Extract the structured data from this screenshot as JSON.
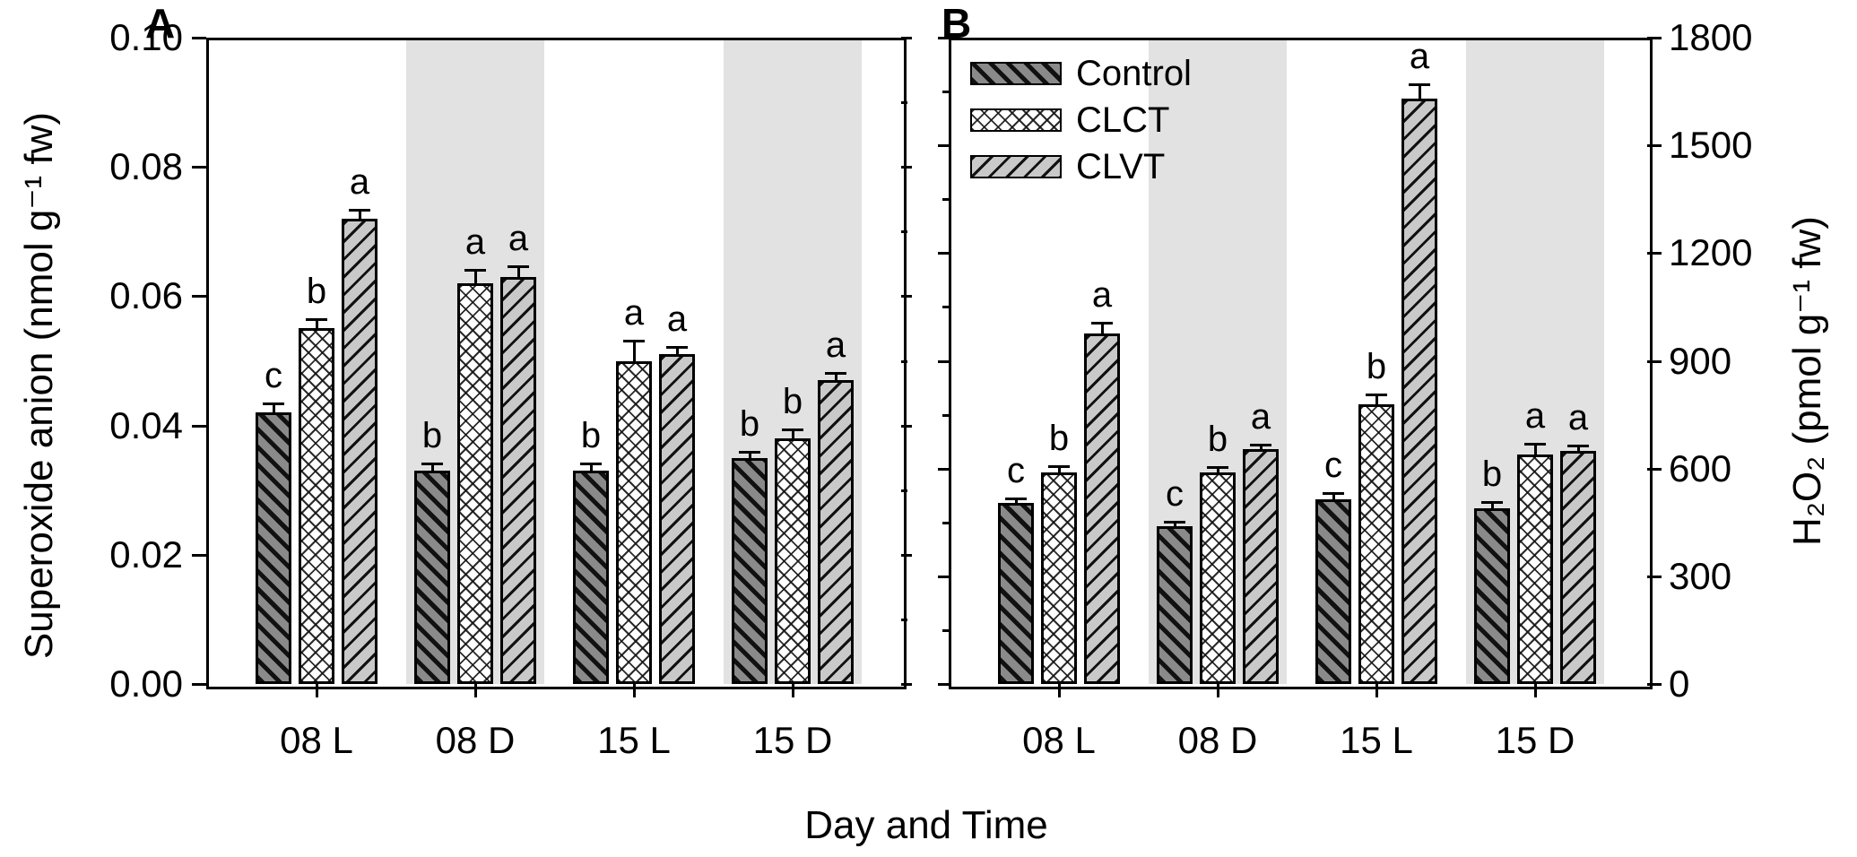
{
  "figure": {
    "xlabel": "Day and Time",
    "panel_a_label": "A",
    "panel_b_label": "B"
  },
  "legend": {
    "items": [
      "Control",
      "CLCT",
      "CLVT"
    ]
  },
  "colors": {
    "control_fill": "#8a8a8a",
    "clct_fill": "#ffffff",
    "clvt_fill": "#c9c9c9",
    "hatch": "#111111",
    "shaded_band": "#e2e2e2",
    "axis": "#000000",
    "background": "#ffffff"
  },
  "chart_data": [
    {
      "type": "bar",
      "panel_label": "A",
      "ylabel": "Superoxide anion (nmol g⁻¹ fw)",
      "xlabel": "Day and Time",
      "ylim": [
        0,
        0.1
      ],
      "ytick_values": [
        0,
        0.02,
        0.04,
        0.06,
        0.08,
        0.1
      ],
      "ytick_labels": [
        "0.00",
        "0.02",
        "0.04",
        "0.06",
        "0.08",
        "0.10"
      ],
      "categories": [
        "08 L",
        "08 D",
        "15 L",
        "15 D"
      ],
      "shaded_groups": [
        false,
        true,
        false,
        true
      ],
      "grid": false,
      "series": [
        {
          "name": "Control",
          "values": [
            0.042,
            0.033,
            0.033,
            0.035
          ],
          "errors": [
            0.0012,
            0.001,
            0.001,
            0.0008
          ],
          "letters": [
            "c",
            "b",
            "b",
            "b"
          ]
        },
        {
          "name": "CLCT",
          "values": [
            0.055,
            0.062,
            0.05,
            0.038
          ],
          "errors": [
            0.0012,
            0.002,
            0.003,
            0.0012
          ],
          "letters": [
            "b",
            "a",
            "a",
            "b"
          ]
        },
        {
          "name": "CLVT",
          "values": [
            0.072,
            0.063,
            0.051,
            0.047
          ],
          "errors": [
            0.0012,
            0.0015,
            0.001,
            0.001
          ],
          "letters": [
            "a",
            "a",
            "a",
            "a"
          ]
        }
      ],
      "legend_visible": false
    },
    {
      "type": "bar",
      "panel_label": "B",
      "ylabel": "H₂O₂ (pmol g⁻¹ fw)",
      "xlabel": "Day and Time",
      "ylim": [
        0,
        1800
      ],
      "ytick_values": [
        0,
        300,
        600,
        900,
        1200,
        1500,
        1800
      ],
      "ytick_labels": [
        "0",
        "300",
        "600",
        "900",
        "1200",
        "1500",
        "1800"
      ],
      "categories": [
        "08 L",
        "08 D",
        "15 L",
        "15 D"
      ],
      "shaded_groups": [
        false,
        true,
        false,
        true
      ],
      "grid": false,
      "series": [
        {
          "name": "Control",
          "values": [
            505,
            440,
            515,
            490
          ],
          "errors": [
            10,
            6,
            14,
            16
          ],
          "letters": [
            "c",
            "c",
            "c",
            "b"
          ]
        },
        {
          "name": "CLCT",
          "values": [
            590,
            590,
            780,
            640
          ],
          "errors": [
            16,
            12,
            26,
            28
          ],
          "letters": [
            "b",
            "b",
            "b",
            "a"
          ]
        },
        {
          "name": "CLVT",
          "values": [
            975,
            655,
            1630,
            650
          ],
          "errors": [
            28,
            10,
            38,
            12
          ],
          "letters": [
            "a",
            "a",
            "a",
            "a"
          ]
        }
      ],
      "legend_visible": true
    }
  ]
}
